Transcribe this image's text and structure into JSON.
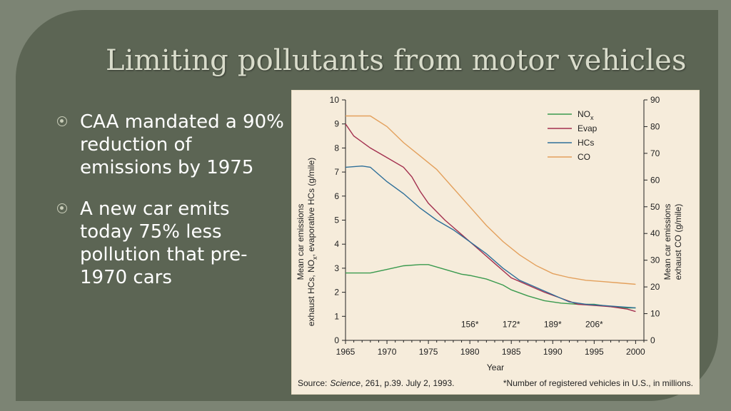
{
  "slide": {
    "title": "Limiting pollutants from motor vehicles",
    "bullets": [
      {
        "text": "CAA mandated a 90% reduction of emissions by 1975"
      },
      {
        "text": "A new car emits today 75% less pollution that pre-1970 cars"
      }
    ]
  },
  "colors": {
    "background": "#7c8474",
    "slide": "#5c6554",
    "title": "#d9dccb",
    "NOx": "#3a9a4e",
    "Evap": "#a3304f",
    "HCs": "#2e6f99",
    "CO": "#e3a05c",
    "figure_bg": "#f6ecdb"
  },
  "chart_data": {
    "type": "line",
    "xlabel": "Year",
    "ylabel_left": "Mean car emissions exhaust HCs, NOx, evaporative HCs (g/mile)",
    "ylabel_right": "Mean car emissions exhaust CO (g/mile)",
    "xlim": [
      1965,
      2001
    ],
    "ylim_left": [
      0,
      10
    ],
    "ylim_right": [
      0,
      90
    ],
    "x_ticks": [
      1965,
      1970,
      1975,
      1980,
      1985,
      1990,
      1995,
      2000
    ],
    "y_left_ticks": [
      0,
      1,
      2,
      3,
      4,
      5,
      6,
      7,
      8,
      9,
      10
    ],
    "y_right_ticks": [
      0,
      10,
      20,
      30,
      40,
      50,
      60,
      70,
      80,
      90
    ],
    "series": [
      {
        "name": "NOx",
        "axis": "left",
        "x": [
          1965,
          1968,
          1970,
          1972,
          1974,
          1975,
          1977,
          1979,
          1980,
          1982,
          1984,
          1985,
          1987,
          1989,
          1991,
          1993,
          1995,
          1997,
          1999,
          2000
        ],
        "y": [
          2.8,
          2.8,
          2.95,
          3.1,
          3.15,
          3.15,
          2.95,
          2.75,
          2.7,
          2.55,
          2.3,
          2.1,
          1.85,
          1.65,
          1.55,
          1.5,
          1.5,
          1.4,
          1.35,
          1.35
        ]
      },
      {
        "name": "Evap",
        "axis": "left",
        "x": [
          1965,
          1966,
          1968,
          1970,
          1972,
          1973,
          1974,
          1975,
          1977,
          1979,
          1981,
          1983,
          1985,
          1987,
          1989,
          1991,
          1993,
          1995,
          1997,
          1999,
          2000
        ],
        "y": [
          9.0,
          8.5,
          8.0,
          7.6,
          7.2,
          6.8,
          6.2,
          5.7,
          5.0,
          4.4,
          3.8,
          3.2,
          2.6,
          2.3,
          2.0,
          1.75,
          1.5,
          1.45,
          1.4,
          1.3,
          1.2
        ]
      },
      {
        "name": "HCs",
        "axis": "left",
        "x": [
          1965,
          1967,
          1968,
          1970,
          1972,
          1974,
          1976,
          1978,
          1980,
          1982,
          1984,
          1986,
          1988,
          1990,
          1992,
          1994,
          1996,
          1998,
          2000
        ],
        "y": [
          7.2,
          7.25,
          7.2,
          6.6,
          6.1,
          5.5,
          5.0,
          4.6,
          4.1,
          3.6,
          3.0,
          2.5,
          2.2,
          1.9,
          1.6,
          1.5,
          1.45,
          1.4,
          1.35
        ]
      },
      {
        "name": "CO",
        "axis": "right",
        "x": [
          1965,
          1968,
          1970,
          1972,
          1974,
          1976,
          1978,
          1980,
          1982,
          1984,
          1986,
          1988,
          1990,
          1992,
          1994,
          1996,
          1998,
          2000
        ],
        "y": [
          84,
          84,
          80,
          74,
          69,
          64,
          57,
          50,
          43,
          37,
          32,
          28,
          25,
          23.5,
          22.5,
          22,
          21.5,
          21
        ]
      }
    ],
    "annotations": [
      {
        "text": "156*",
        "x": 1980
      },
      {
        "text": "172*",
        "x": 1985
      },
      {
        "text": "189*",
        "x": 1990
      },
      {
        "text": "206*",
        "x": 1995
      }
    ],
    "legend_position": "top-right",
    "grid": false
  },
  "figure": {
    "source_label": "Source:",
    "source_journal": "Science",
    "source_details": ", 261, p.39. July 2, 1993.",
    "footnote": "*Number of registered vehicles in U.S., in millions.",
    "legend_labels": {
      "NOx_base": "NO",
      "NOx_sub": "x",
      "Evap": "Evap",
      "HCs": "HCs",
      "CO": "CO"
    },
    "ylabel_left_line1": "Mean car emissions",
    "ylabel_left_line2_a": "exhaust HCs, NO",
    "ylabel_left_line2_sub": "x",
    "ylabel_left_line2_b": ", evaporative HCs (g/mile)",
    "ylabel_right_line1": "Mean car emissions",
    "ylabel_right_line2": "exhaust CO (g/mile)"
  }
}
